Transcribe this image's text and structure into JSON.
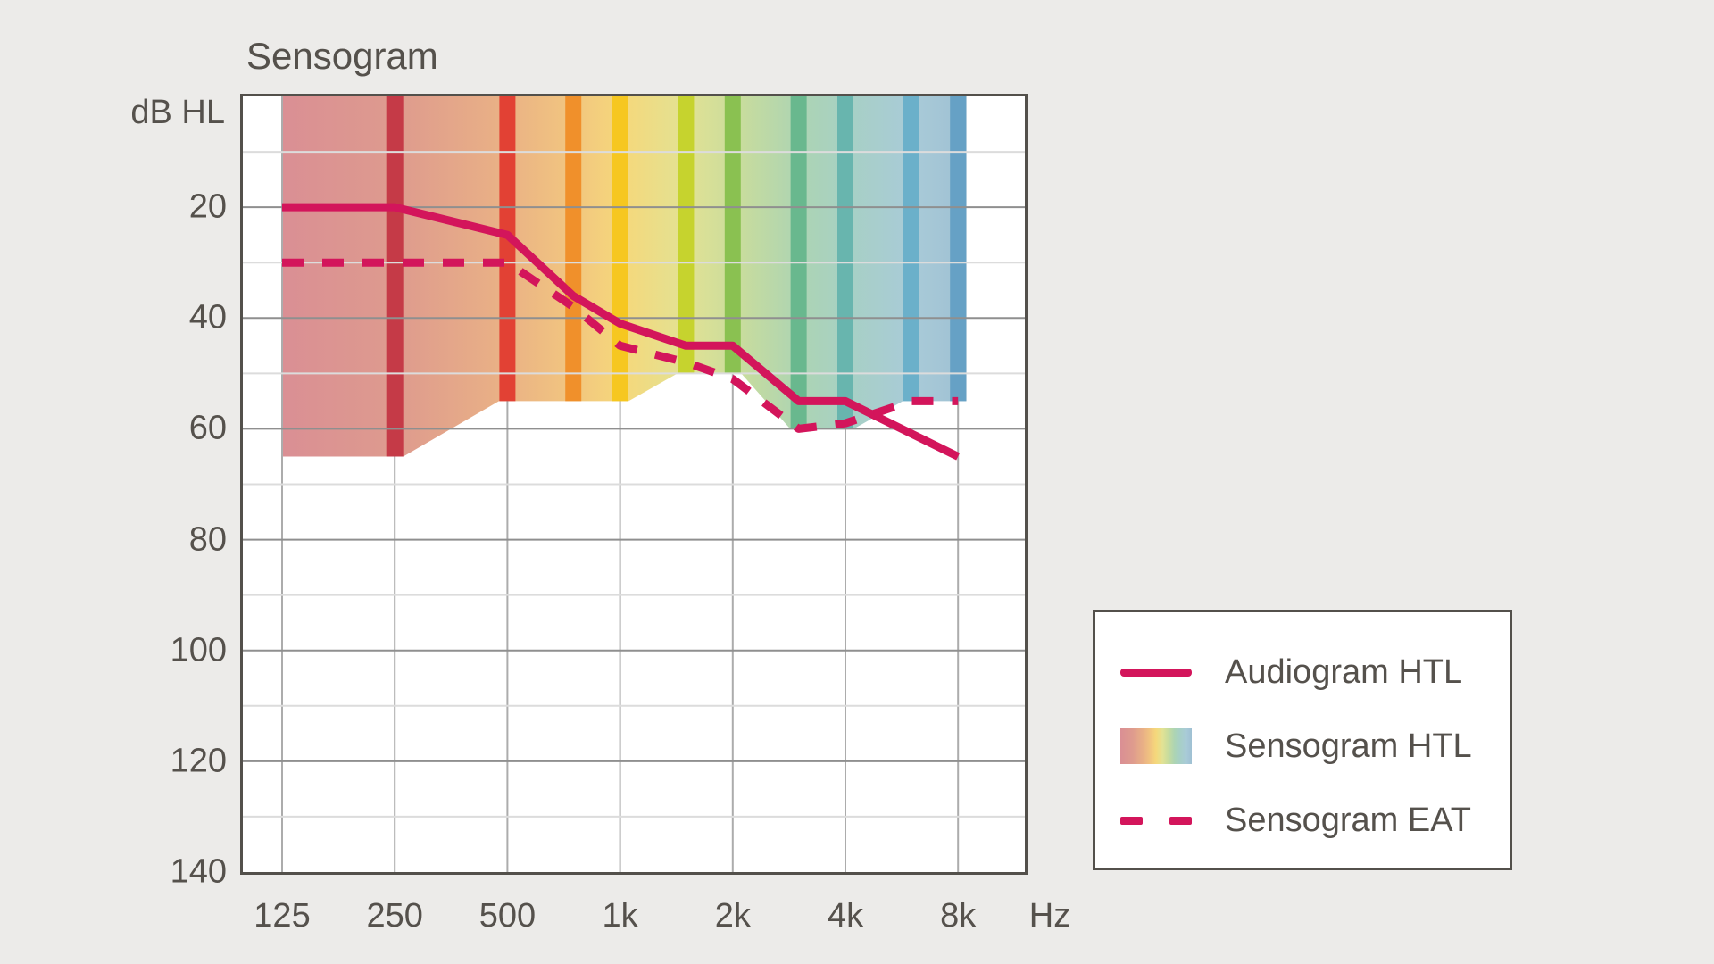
{
  "title": "Sensogram",
  "colors": {
    "background": "#ECEBE9",
    "plot_background": "#FFFFFF",
    "border": "#53504B",
    "text": "#55514C",
    "grid_major": "#8F8F8F",
    "grid_minor": "#DCDCDC",
    "grid_vertical": "#ACACAC",
    "accent_crimson": "#D3155B"
  },
  "y_axis": {
    "label": "dB HL",
    "ticks": [
      20,
      40,
      60,
      80,
      100,
      120,
      140
    ],
    "min": 0,
    "max": 140,
    "minor_step": 10
  },
  "x_axis": {
    "unit": "Hz",
    "ticks": [
      "125",
      "250",
      "500",
      "1k",
      "2k",
      "4k",
      "8k"
    ],
    "tick_hz": [
      125,
      250,
      500,
      1000,
      2000,
      4000,
      8000
    ]
  },
  "legend": {
    "items": [
      {
        "label": "Audiogram HTL",
        "swatch": "solid-line"
      },
      {
        "label": "Sensogram HTL",
        "swatch": "gradient-area"
      },
      {
        "label": "Sensogram EAT",
        "swatch": "dashed-line"
      }
    ]
  },
  "chart_data": {
    "type": "line",
    "title": "Sensogram",
    "x_scale": "log2",
    "x_range_hz": [
      125,
      8000
    ],
    "y_range_db": [
      0,
      140
    ],
    "y_inverted": true,
    "ylabel": "dB HL",
    "xlabel": "Hz",
    "grid": "on",
    "legend_position": "right-outside",
    "series": [
      {
        "name": "Audiogram HTL",
        "style": "solid",
        "color": "#D3155B",
        "points_hz_db": [
          [
            125,
            20
          ],
          [
            250,
            20
          ],
          [
            500,
            25
          ],
          [
            750,
            36
          ],
          [
            1000,
            41
          ],
          [
            1500,
            45
          ],
          [
            2000,
            45
          ],
          [
            3000,
            55
          ],
          [
            4000,
            55
          ],
          [
            8000,
            65
          ]
        ]
      },
      {
        "name": "Sensogram EAT",
        "style": "dashed",
        "color": "#D3155B",
        "points_hz_db": [
          [
            125,
            30
          ],
          [
            500,
            30
          ],
          [
            750,
            38
          ],
          [
            1000,
            45
          ],
          [
            1500,
            48
          ],
          [
            2000,
            51
          ],
          [
            3000,
            60
          ],
          [
            4000,
            59
          ],
          [
            6000,
            55
          ],
          [
            8000,
            55
          ]
        ]
      }
    ],
    "htl_area": {
      "name": "Sensogram HTL",
      "top_db": 0,
      "bottom_points_hz_db": [
        [
          125,
          65
        ],
        [
          250,
          65
        ],
        [
          500,
          55
        ],
        [
          1000,
          55
        ],
        [
          1500,
          50
        ],
        [
          2000,
          50
        ],
        [
          3000,
          60
        ],
        [
          4000,
          60
        ],
        [
          6000,
          55
        ],
        [
          8000,
          55
        ]
      ],
      "gradient_stops": [
        {
          "at": 0.0,
          "color": "#DA8F94"
        },
        {
          "at": 0.17,
          "color": "#DE9B8E"
        },
        {
          "at": 0.33,
          "color": "#EAB285"
        },
        {
          "at": 0.43,
          "color": "#F2C77F"
        },
        {
          "at": 0.5,
          "color": "#F5D87B"
        },
        {
          "at": 0.59,
          "color": "#E2E294"
        },
        {
          "at": 0.67,
          "color": "#C8DC9D"
        },
        {
          "at": 0.76,
          "color": "#ACD4B4"
        },
        {
          "at": 0.83,
          "color": "#A7D0C5"
        },
        {
          "at": 0.92,
          "color": "#A9CBD8"
        },
        {
          "at": 1.0,
          "color": "#9FC0D3"
        }
      ],
      "stripes": [
        {
          "hz": 250,
          "color": "#C53A47",
          "width": 19
        },
        {
          "hz": 500,
          "color": "#E24134",
          "width": 18
        },
        {
          "hz": 750,
          "color": "#F0902B",
          "width": 18
        },
        {
          "hz": 1000,
          "color": "#F6C720",
          "width": 18
        },
        {
          "hz": 1500,
          "color": "#C6D32E",
          "width": 18
        },
        {
          "hz": 2000,
          "color": "#8AC151",
          "width": 18
        },
        {
          "hz": 3000,
          "color": "#69B88E",
          "width": 18
        },
        {
          "hz": 4000,
          "color": "#68B5AE",
          "width": 18
        },
        {
          "hz": 6000,
          "color": "#6BB0CA",
          "width": 18
        },
        {
          "hz": 8000,
          "color": "#66A1C5",
          "width": 18
        }
      ]
    }
  }
}
